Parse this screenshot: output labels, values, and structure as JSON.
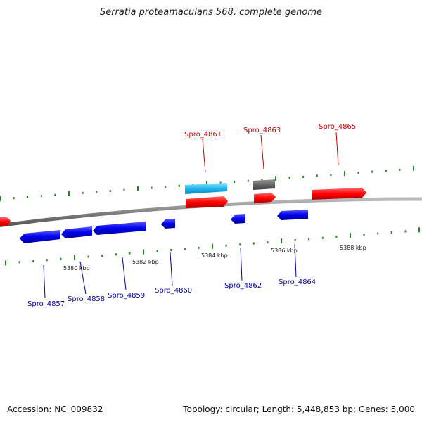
{
  "title": "Serratia proteamaculans 568, complete genome",
  "footer": {
    "accession": "Accession: NC_009832",
    "summary": "Topology: circular; Length: 5,448,853 bp; Genes: 5,000"
  },
  "colors": {
    "forward_gene": "#ff0000",
    "reverse_gene": "#0000ee",
    "label_forward": "#cc0000",
    "label_reverse": "#0000aa",
    "cyan_gene": "#22b8f0",
    "gray_gene": "#666666",
    "tick": "#1a8a1a",
    "backbone": "#888888"
  },
  "scale_labels": [
    "5380 kbp",
    "5382 kbp",
    "5384 kbp",
    "5386 kbp",
    "5388 kbp"
  ],
  "gene_labels_top": [
    "Spro_4861",
    "Spro_4863",
    "Spro_4865"
  ],
  "gene_labels_bottom": [
    "Spro_4857",
    "Spro_4858",
    "Spro_4859",
    "Spro_4860",
    "Spro_4862",
    "Spro_4864"
  ]
}
